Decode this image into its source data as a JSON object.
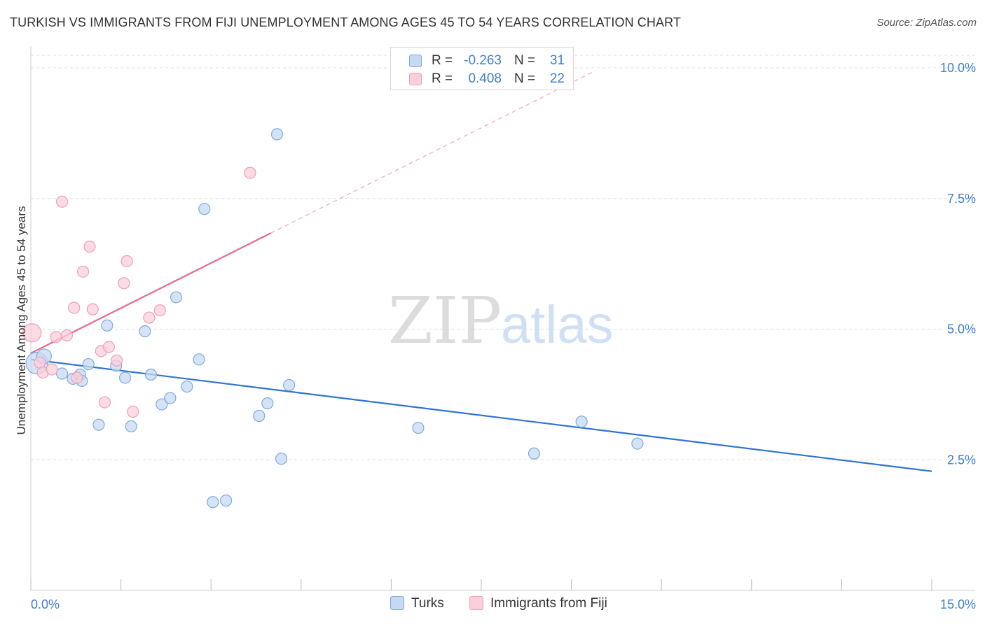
{
  "header": {
    "title": "TURKISH VS IMMIGRANTS FROM FIJI UNEMPLOYMENT AMONG AGES 45 TO 54 YEARS CORRELATION CHART",
    "source": "Source: ZipAtlas.com"
  },
  "watermark": {
    "zip": "ZIP",
    "atlas": "atlas"
  },
  "legend": {
    "rows": [
      {
        "r_label": "R =",
        "r_value": "-0.263",
        "n_label": "N =",
        "n_value": "31"
      },
      {
        "r_label": "R =",
        "r_value": "0.408",
        "n_label": "N =",
        "n_value": "22"
      }
    ]
  },
  "bottom_legend": {
    "series1": "Turks",
    "series2": "Immigrants from Fiji"
  },
  "colors": {
    "turks_fill": "#c5d9f3",
    "turks_stroke": "#7eaadf",
    "turks_line": "#2f74d0",
    "fiji_fill": "#f9cfdb",
    "fiji_stroke": "#ef9fb6",
    "fiji_line": "#e46a92",
    "tick_text": "#3f7fd0",
    "grid": "#dddddd"
  },
  "chart_data": {
    "type": "scatter",
    "title": "TURKISH VS IMMIGRANTS FROM FIJI UNEMPLOYMENT AMONG AGES 45 TO 54 YEARS CORRELATION CHART",
    "xlabel": "",
    "ylabel": "Unemployment Among Ages 45 to 54 years",
    "xlim": [
      0,
      15
    ],
    "ylim": [
      0,
      10.2
    ],
    "x_tick_labels": [
      {
        "value": 0,
        "label": "0.0%"
      },
      {
        "value": 15,
        "label": "15.0%"
      }
    ],
    "x_minor_ticks": [
      1.5,
      3.0,
      4.5,
      6.0,
      7.5,
      9.0,
      10.5,
      12.0,
      13.5
    ],
    "y_ticks": [
      {
        "value": 2.5,
        "label": "2.5%"
      },
      {
        "value": 5.0,
        "label": "5.0%"
      },
      {
        "value": 7.5,
        "label": "7.5%"
      },
      {
        "value": 10.0,
        "label": "10.0%"
      }
    ],
    "grid": true,
    "legend_position": "top-center",
    "series": [
      {
        "name": "Turks",
        "r": -0.263,
        "n": 31,
        "points": [
          {
            "x": 0.1,
            "y": 4.35,
            "size": 4
          },
          {
            "x": 0.22,
            "y": 4.48,
            "size": 2
          },
          {
            "x": 0.52,
            "y": 4.15,
            "size": 1
          },
          {
            "x": 0.7,
            "y": 4.05,
            "size": 1
          },
          {
            "x": 0.82,
            "y": 4.13,
            "size": 1
          },
          {
            "x": 0.85,
            "y": 4.01,
            "size": 1
          },
          {
            "x": 0.96,
            "y": 4.33,
            "size": 1
          },
          {
            "x": 1.13,
            "y": 3.17,
            "size": 1
          },
          {
            "x": 1.27,
            "y": 5.07,
            "size": 1
          },
          {
            "x": 1.42,
            "y": 4.3,
            "size": 1
          },
          {
            "x": 1.57,
            "y": 4.07,
            "size": 1
          },
          {
            "x": 1.67,
            "y": 3.14,
            "size": 1
          },
          {
            "x": 1.9,
            "y": 4.96,
            "size": 1
          },
          {
            "x": 2.0,
            "y": 4.13,
            "size": 1
          },
          {
            "x": 2.18,
            "y": 3.56,
            "size": 1
          },
          {
            "x": 2.32,
            "y": 3.68,
            "size": 1
          },
          {
            "x": 2.42,
            "y": 5.61,
            "size": 1
          },
          {
            "x": 2.6,
            "y": 3.9,
            "size": 1
          },
          {
            "x": 2.8,
            "y": 4.42,
            "size": 1
          },
          {
            "x": 2.89,
            "y": 7.3,
            "size": 1
          },
          {
            "x": 3.03,
            "y": 1.69,
            "size": 1
          },
          {
            "x": 3.25,
            "y": 1.72,
            "size": 1
          },
          {
            "x": 3.8,
            "y": 3.34,
            "size": 1
          },
          {
            "x": 3.94,
            "y": 3.58,
            "size": 1
          },
          {
            "x": 4.1,
            "y": 8.73,
            "size": 1
          },
          {
            "x": 4.17,
            "y": 2.52,
            "size": 1
          },
          {
            "x": 4.3,
            "y": 3.93,
            "size": 1
          },
          {
            "x": 6.45,
            "y": 3.11,
            "size": 1
          },
          {
            "x": 8.38,
            "y": 2.62,
            "size": 1
          },
          {
            "x": 9.17,
            "y": 3.23,
            "size": 1
          },
          {
            "x": 10.1,
            "y": 2.81,
            "size": 1
          }
        ],
        "trend": {
          "x0": 0.0,
          "y0": 4.42,
          "x1": 15.0,
          "y1": 2.28,
          "dashed_x1": 15.0
        }
      },
      {
        "name": "Immigrants from Fiji",
        "r": 0.408,
        "n": 22,
        "points": [
          {
            "x": 0.02,
            "y": 4.93,
            "size": 3
          },
          {
            "x": 0.15,
            "y": 4.36,
            "size": 1
          },
          {
            "x": 0.2,
            "y": 4.17,
            "size": 1
          },
          {
            "x": 0.35,
            "y": 4.23,
            "size": 1
          },
          {
            "x": 0.42,
            "y": 4.85,
            "size": 1
          },
          {
            "x": 0.52,
            "y": 7.44,
            "size": 1
          },
          {
            "x": 0.6,
            "y": 4.88,
            "size": 1
          },
          {
            "x": 0.72,
            "y": 5.41,
            "size": 1
          },
          {
            "x": 0.77,
            "y": 4.07,
            "size": 1
          },
          {
            "x": 0.87,
            "y": 6.1,
            "size": 1
          },
          {
            "x": 0.98,
            "y": 6.58,
            "size": 1
          },
          {
            "x": 1.03,
            "y": 5.38,
            "size": 1
          },
          {
            "x": 1.17,
            "y": 4.58,
            "size": 1
          },
          {
            "x": 1.23,
            "y": 3.6,
            "size": 1
          },
          {
            "x": 1.3,
            "y": 4.66,
            "size": 1
          },
          {
            "x": 1.43,
            "y": 4.4,
            "size": 1
          },
          {
            "x": 1.55,
            "y": 5.88,
            "size": 1
          },
          {
            "x": 1.6,
            "y": 6.3,
            "size": 1
          },
          {
            "x": 1.7,
            "y": 3.42,
            "size": 1
          },
          {
            "x": 1.97,
            "y": 5.22,
            "size": 1
          },
          {
            "x": 2.15,
            "y": 5.36,
            "size": 1
          },
          {
            "x": 3.65,
            "y": 7.99,
            "size": 1
          }
        ],
        "trend": {
          "x0": 0.0,
          "y0": 4.54,
          "x1": 4.0,
          "y1": 6.84,
          "dashed_x1": 9.4
        }
      }
    ]
  }
}
